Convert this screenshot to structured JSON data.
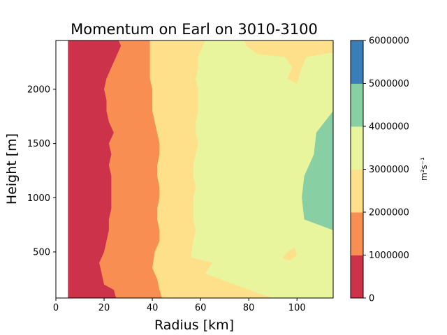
{
  "chart_data": {
    "type": "heatmap",
    "subtype": "filled-contour",
    "title": "Momentum on Earl on 3010-3100",
    "xlabel": "Radius [km]",
    "ylabel": "Height [m]",
    "xlim": [
      0,
      115
    ],
    "ylim": [
      75,
      2450
    ],
    "data_x_start": 5,
    "x_ticks": [
      0,
      20,
      40,
      60,
      80,
      100
    ],
    "y_ticks": [
      500,
      1000,
      1500,
      2000
    ],
    "grid": false,
    "colorbar": {
      "label": "m²s⁻¹",
      "levels": [
        0,
        1000000,
        2000000,
        3000000,
        4000000,
        5000000,
        6000000
      ],
      "tick_labels": [
        "0",
        "1000000",
        "2000000",
        "3000000",
        "4000000",
        "5000000",
        "6000000"
      ],
      "colors": [
        "#cc334b",
        "#f98e52",
        "#fee08b",
        "#e8f59c",
        "#88cfa4",
        "#3a7eb8"
      ]
    },
    "contour_boundaries": [
      {
        "level": 1000000,
        "points": [
          [
            25,
            75
          ],
          [
            24,
            150
          ],
          [
            20,
            200
          ],
          [
            19,
            300
          ],
          [
            18,
            400
          ],
          [
            20,
            500
          ],
          [
            21,
            600
          ],
          [
            22,
            700
          ],
          [
            22,
            800
          ],
          [
            23,
            900
          ],
          [
            23,
            1000
          ],
          [
            23,
            1100
          ],
          [
            23,
            1200
          ],
          [
            22,
            1300
          ],
          [
            23,
            1400
          ],
          [
            22,
            1500
          ],
          [
            24,
            1600
          ],
          [
            22,
            1700
          ],
          [
            21,
            1800
          ],
          [
            21,
            1900
          ],
          [
            20,
            2000
          ],
          [
            21,
            2100
          ],
          [
            23,
            2200
          ],
          [
            25,
            2300
          ],
          [
            27,
            2400
          ],
          [
            26,
            2450
          ]
        ]
      },
      {
        "level": 2000000,
        "points": [
          [
            44,
            75
          ],
          [
            43,
            150
          ],
          [
            42,
            250
          ],
          [
            40,
            350
          ],
          [
            41,
            500
          ],
          [
            43,
            600
          ],
          [
            43,
            700
          ],
          [
            42,
            800
          ],
          [
            42,
            900
          ],
          [
            43,
            1000
          ],
          [
            43,
            1100
          ],
          [
            42,
            1200
          ],
          [
            42,
            1300
          ],
          [
            43,
            1400
          ],
          [
            43,
            1500
          ],
          [
            42,
            1600
          ],
          [
            41,
            1700
          ],
          [
            40,
            1800
          ],
          [
            40,
            1900
          ],
          [
            40,
            2000
          ],
          [
            39,
            2100
          ],
          [
            39,
            2200
          ],
          [
            39,
            2300
          ],
          [
            39,
            2400
          ],
          [
            39,
            2450
          ]
        ]
      },
      {
        "level": 3000000,
        "points": [
          [
            90,
            75
          ],
          [
            80,
            150
          ],
          [
            68,
            250
          ],
          [
            62,
            300
          ],
          [
            65,
            400
          ],
          [
            56,
            450
          ],
          [
            57,
            600
          ],
          [
            58,
            700
          ],
          [
            57,
            800
          ],
          [
            57,
            900
          ],
          [
            57,
            1000
          ],
          [
            58,
            1100
          ],
          [
            57,
            1200
          ],
          [
            57,
            1300
          ],
          [
            58,
            1400
          ],
          [
            59,
            1500
          ],
          [
            58,
            1600
          ],
          [
            58,
            1700
          ],
          [
            59,
            1800
          ],
          [
            59,
            1900
          ],
          [
            59,
            2000
          ],
          [
            58,
            2100
          ],
          [
            59,
            2200
          ],
          [
            59,
            2300
          ],
          [
            61,
            2400
          ],
          [
            62,
            2450
          ]
        ]
      },
      {
        "level": 4000000,
        "points": [
          [
            115,
            1000
          ],
          [
            115,
            1800
          ],
          [
            108,
            1600
          ],
          [
            107,
            1400
          ],
          [
            103,
            1200
          ],
          [
            102,
            1000
          ],
          [
            103,
            800
          ],
          [
            115,
            700
          ]
        ]
      }
    ]
  }
}
